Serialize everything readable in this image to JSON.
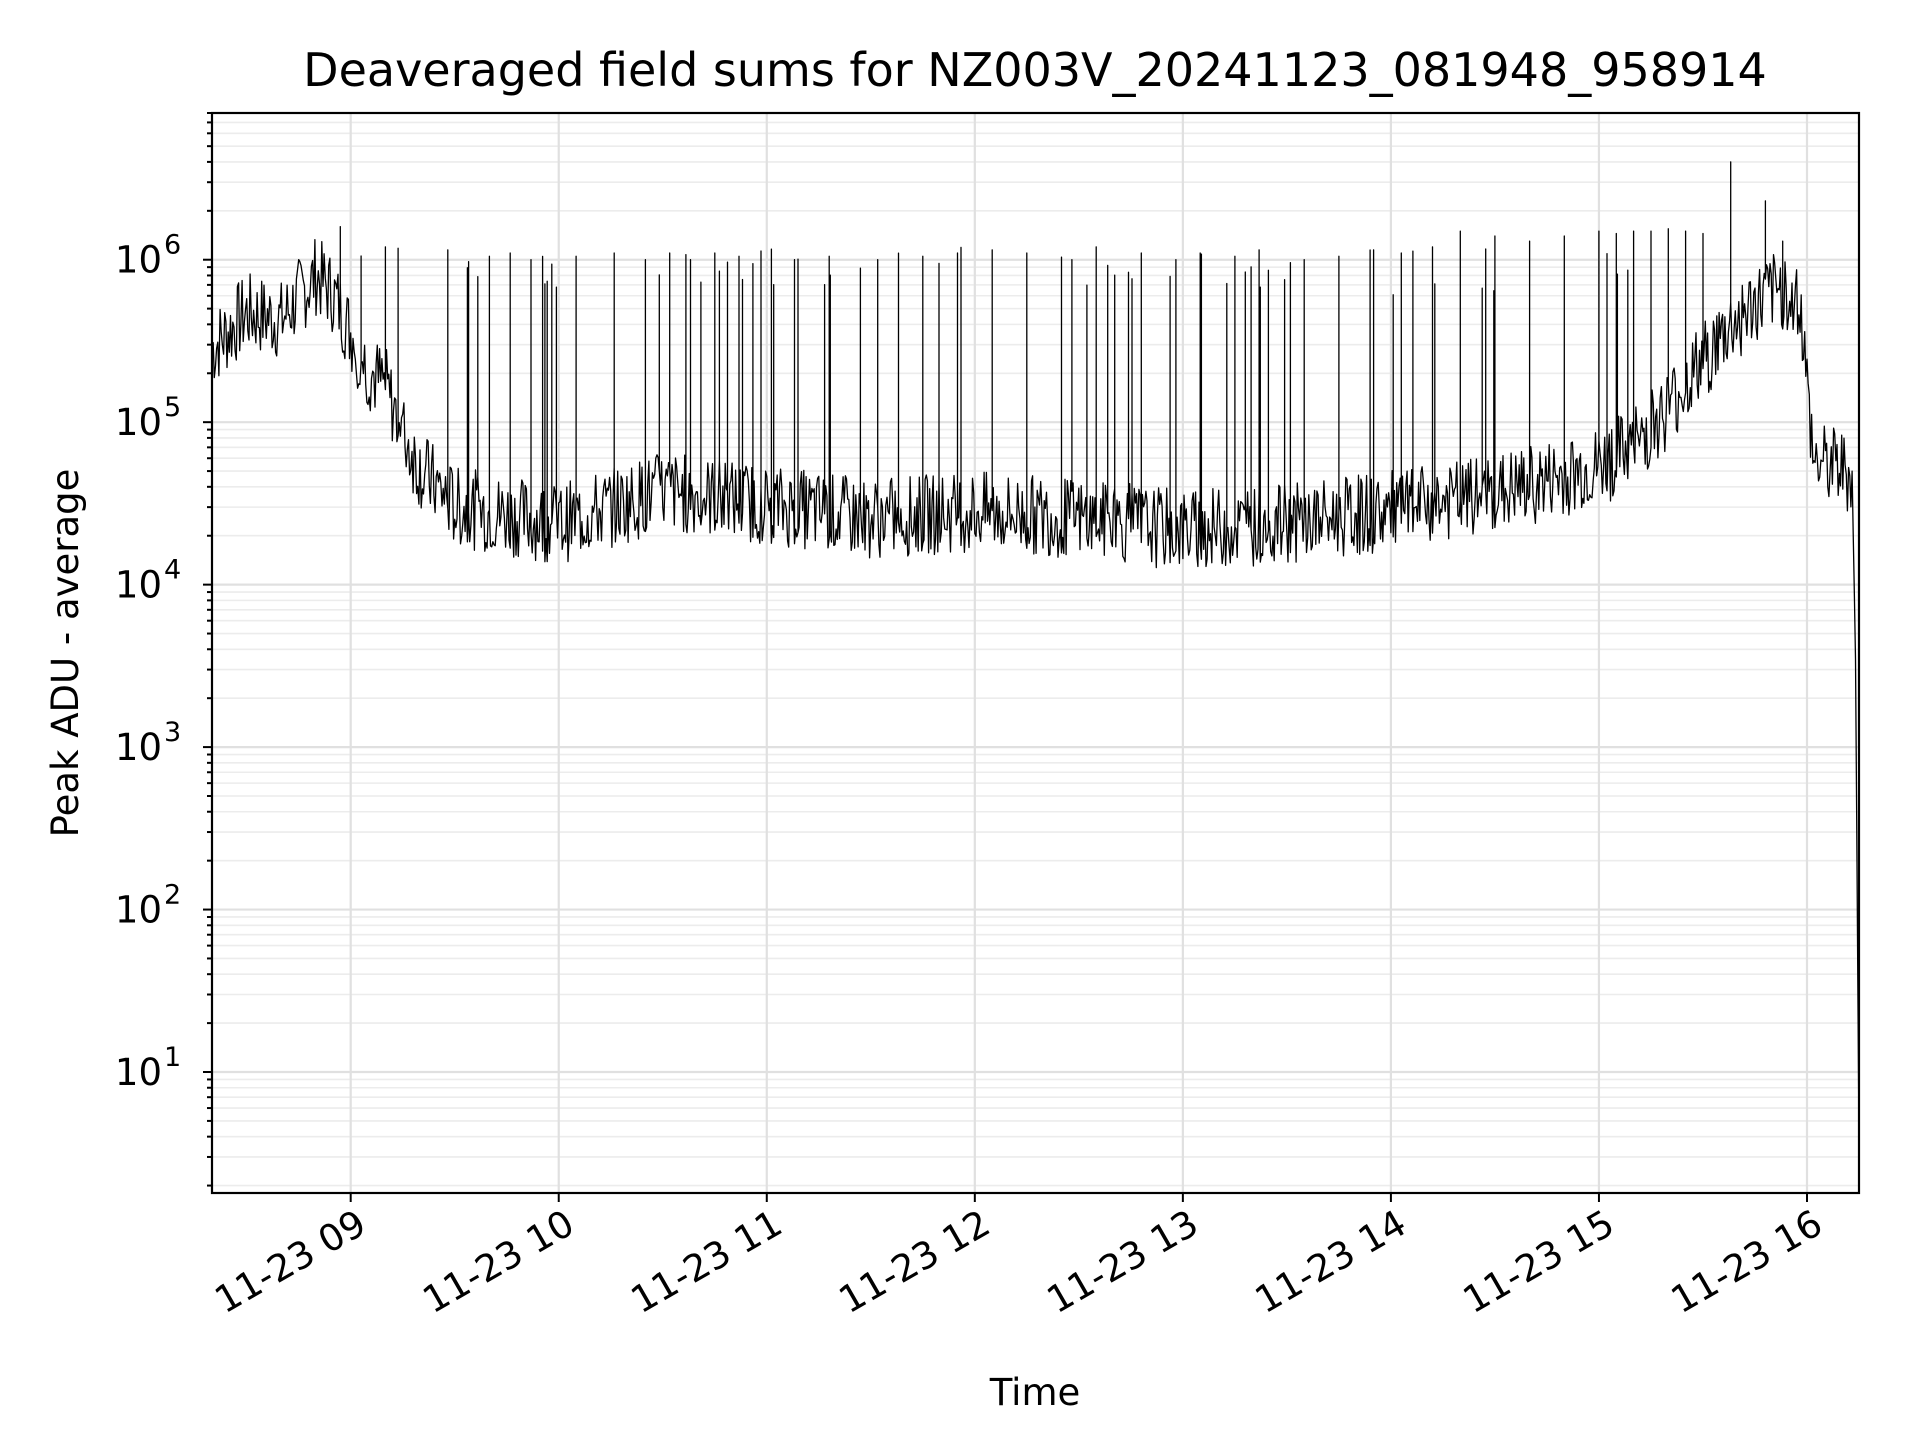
{
  "chart_data": {
    "type": "line",
    "title": "Deaveraged field sums for NZ003V_20241123_081948_958914",
    "xlabel": "Time",
    "ylabel": "Peak ADU - average",
    "yscale": "log",
    "ylim": [
      1.8,
      8000000
    ],
    "xlim": [
      "2024-11-23 08:20",
      "2024-11-23 16:15"
    ],
    "grid": true,
    "grid_minor": true,
    "x_ticks": [
      "2024-11-23 09:00",
      "2024-11-23 10:00",
      "2024-11-23 11:00",
      "2024-11-23 12:00",
      "2024-11-23 13:00",
      "2024-11-23 14:00",
      "2024-11-23 15:00",
      "2024-11-23 16:00"
    ],
    "x_tick_labels": [
      "11-23 09",
      "11-23 10",
      "11-23 11",
      "11-23 12",
      "11-23 13",
      "11-23 14",
      "11-23 15",
      "11-23 16"
    ],
    "y_ticks": [
      {
        "base": "10",
        "exp": "1",
        "value": 10
      },
      {
        "base": "10",
        "exp": "2",
        "value": 100
      },
      {
        "base": "10",
        "exp": "3",
        "value": 1000
      },
      {
        "base": "10",
        "exp": "4",
        "value": 10000
      },
      {
        "base": "10",
        "exp": "5",
        "value": 100000
      },
      {
        "base": "10",
        "exp": "6",
        "value": 1000000
      }
    ],
    "series": [
      {
        "color": "#000000",
        "x": [
          "2024-11-23 08:20",
          "2024-11-23 08:30",
          "2024-11-23 08:40",
          "2024-11-23 08:50",
          "2024-11-23 08:55",
          "2024-11-23 09:05",
          "2024-11-23 09:10",
          "2024-11-23 09:15",
          "2024-11-23 09:20",
          "2024-11-23 09:30",
          "2024-11-23 10:00",
          "2024-11-23 10:30",
          "2024-11-23 11:00",
          "2024-11-23 11:30",
          "2024-11-23 12:00",
          "2024-11-23 12:30",
          "2024-11-23 13:00",
          "2024-11-23 13:30",
          "2024-11-23 14:00",
          "2024-11-23 14:30",
          "2024-11-23 15:00",
          "2024-11-23 15:10",
          "2024-11-23 15:20",
          "2024-11-23 15:30",
          "2024-11-23 15:40",
          "2024-11-23 15:50",
          "2024-11-23 15:55",
          "2024-11-23 15:58",
          "2024-11-23 16:00",
          "2024-11-23 16:02",
          "2024-11-23 16:10",
          "2024-11-23 16:13",
          "2024-11-23 16:14",
          "2024-11-23 16:15"
        ],
        "y": [
          300000,
          500000,
          450000,
          850000,
          650000,
          220000,
          180000,
          90000,
          55000,
          32000,
          25000,
          40000,
          33000,
          27000,
          30000,
          27000,
          23000,
          25000,
          30000,
          38000,
          55000,
          75000,
          130000,
          250000,
          450000,
          650000,
          700000,
          600000,
          180000,
          60000,
          55000,
          50000,
          3500,
          3.8
        ],
        "spikes": [
          [
            "2024-11-23 08:57",
            1600000
          ],
          [
            "2024-11-23 09:10",
            1200000
          ],
          [
            "2024-11-23 09:28",
            1150000
          ],
          [
            "2024-11-23 09:40",
            1050000
          ],
          [
            "2024-11-23 09:46",
            1100000
          ],
          [
            "2024-11-23 09:52",
            1000000
          ],
          [
            "2024-11-23 10:05",
            1050000
          ],
          [
            "2024-11-23 10:16",
            1100000
          ],
          [
            "2024-11-23 10:25",
            1000000
          ],
          [
            "2024-11-23 10:32",
            1100000
          ],
          [
            "2024-11-23 10:38",
            1000000
          ],
          [
            "2024-11-23 10:45",
            1100000
          ],
          [
            "2024-11-23 10:52",
            1050000
          ],
          [
            "2024-11-23 11:08",
            1000000
          ],
          [
            "2024-11-23 11:18",
            1050000
          ],
          [
            "2024-11-23 11:32",
            1000000
          ],
          [
            "2024-11-23 11:45",
            1050000
          ],
          [
            "2024-11-23 11:55",
            1100000
          ],
          [
            "2024-11-23 12:05",
            1150000
          ],
          [
            "2024-11-23 12:15",
            1100000
          ],
          [
            "2024-11-23 12:28",
            1000000
          ],
          [
            "2024-11-23 12:35",
            1200000
          ],
          [
            "2024-11-23 12:48",
            1100000
          ],
          [
            "2024-11-23 12:58",
            1000000
          ],
          [
            "2024-11-23 13:05",
            1100000
          ],
          [
            "2024-11-23 13:15",
            1050000
          ],
          [
            "2024-11-23 13:22",
            1150000
          ],
          [
            "2024-11-23 13:35",
            1000000
          ],
          [
            "2024-11-23 13:45",
            1050000
          ],
          [
            "2024-11-23 13:55",
            1150000
          ],
          [
            "2024-11-23 14:03",
            1100000
          ],
          [
            "2024-11-23 14:12",
            1200000
          ],
          [
            "2024-11-23 14:20",
            1500000
          ],
          [
            "2024-11-23 14:30",
            1400000
          ],
          [
            "2024-11-23 14:40",
            1300000
          ],
          [
            "2024-11-23 14:50",
            1400000
          ],
          [
            "2024-11-23 15:00",
            1500000
          ],
          [
            "2024-11-23 15:05",
            1450000
          ],
          [
            "2024-11-23 15:10",
            1500000
          ],
          [
            "2024-11-23 15:15",
            1500000
          ],
          [
            "2024-11-23 15:20",
            1550000
          ],
          [
            "2024-11-23 15:25",
            1500000
          ],
          [
            "2024-11-23 15:30",
            1450000
          ],
          [
            "2024-11-23 15:38",
            4000000
          ],
          [
            "2024-11-23 15:48",
            2300000
          ],
          [
            "2024-11-23 15:53",
            1300000
          ]
        ]
      }
    ]
  }
}
